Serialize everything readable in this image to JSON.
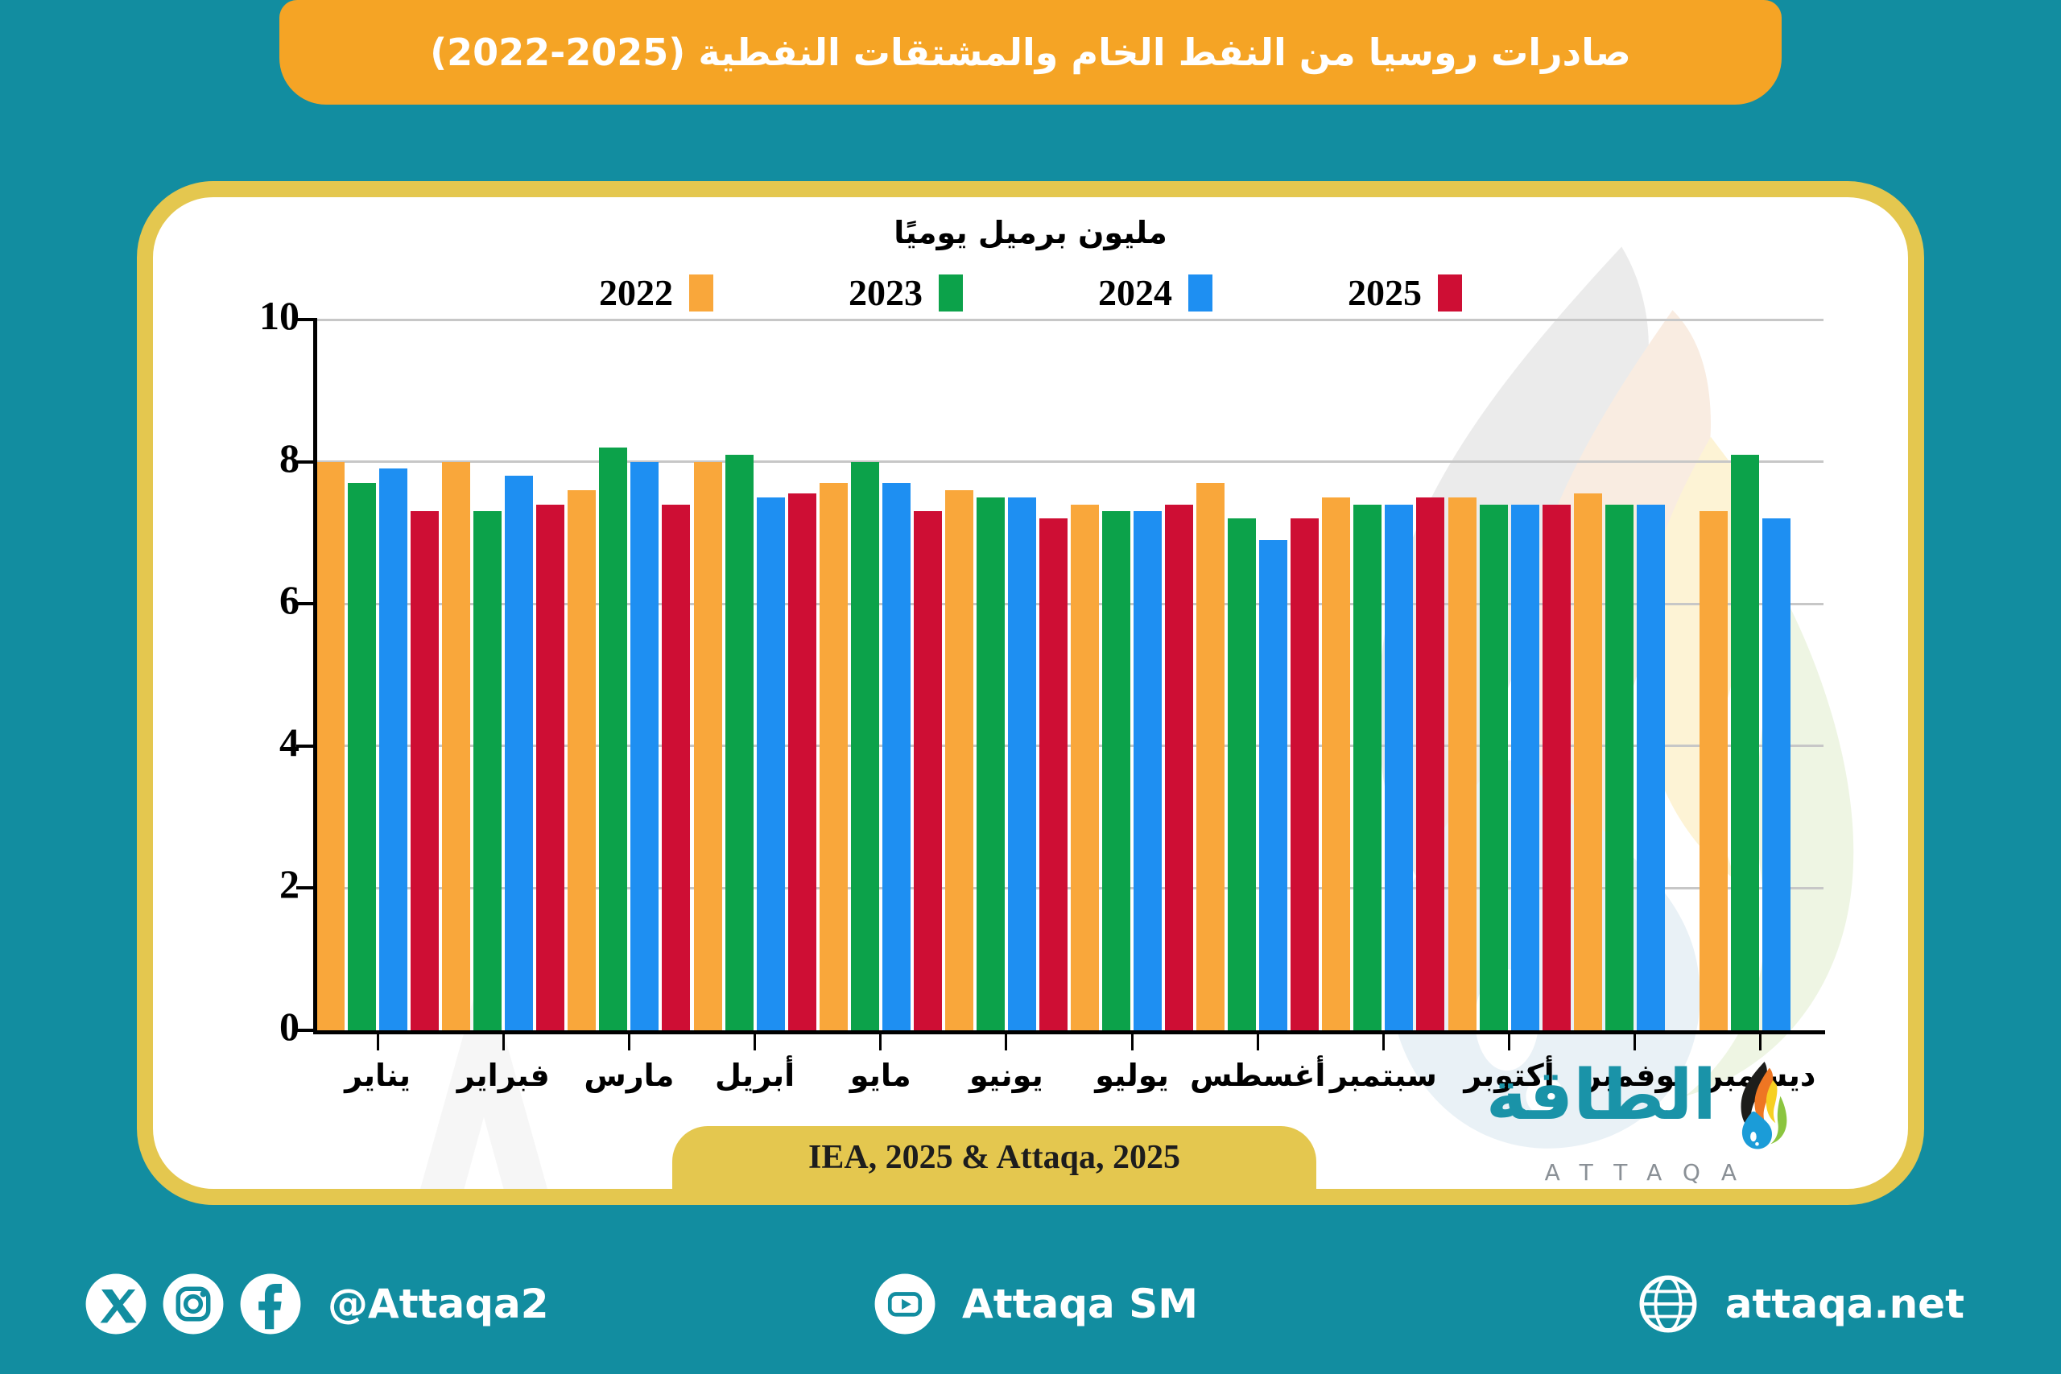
{
  "title": "صادرات روسيا من النفط الخام والمشتقات النفطية (2025-2022)",
  "chart_data": {
    "type": "bar",
    "title": "مليون برميل يوميًا",
    "categories": [
      "يناير",
      "فبراير",
      "مارس",
      "أبريل",
      "مايو",
      "يونيو",
      "يوليو",
      "أغسطس",
      "سبتمبر",
      "أكتوبر",
      "نوفمبر",
      "ديسمبر"
    ],
    "series": [
      {
        "name": "2022",
        "color": "#F9A73B",
        "values": [
          8.0,
          8.0,
          7.6,
          8.0,
          7.7,
          7.6,
          7.4,
          7.7,
          7.5,
          7.5,
          7.55,
          7.3
        ]
      },
      {
        "name": "2023",
        "color": "#0CA24A",
        "values": [
          7.7,
          7.3,
          8.2,
          8.1,
          8.0,
          7.5,
          7.3,
          7.2,
          7.4,
          7.4,
          7.4,
          8.1
        ]
      },
      {
        "name": "2024",
        "color": "#1E8FF2",
        "values": [
          7.9,
          7.8,
          8.0,
          7.5,
          7.7,
          7.5,
          7.3,
          6.9,
          7.4,
          7.4,
          7.4,
          7.2
        ]
      },
      {
        "name": "2025",
        "color": "#CE0E34",
        "values": [
          7.3,
          7.4,
          7.4,
          7.55,
          7.3,
          7.2,
          7.4,
          7.2,
          7.5,
          7.4,
          null,
          null
        ]
      }
    ],
    "ylim": [
      0,
      10
    ],
    "yticks": [
      0,
      2,
      4,
      6,
      8,
      10
    ],
    "grid": true,
    "legend_position": "top",
    "ylabel": "",
    "xlabel": ""
  },
  "source": "IEA, 2025 & Attaqa, 2025",
  "brand": {
    "arabic": "الطاقة",
    "latin": "ATTAQA"
  },
  "footer": {
    "handle": "@Attaqa2",
    "youtube_label": "Attaqa SM",
    "website": "attaqa.net"
  },
  "colors": {
    "background_teal": "#128DA0",
    "card_border_gold": "#E4C74F",
    "banner_orange": "#F5A425",
    "bar_2022": "#F9A73B",
    "bar_2023": "#0CA24A",
    "bar_2024": "#1E8FF2",
    "bar_2025": "#CE0E34"
  }
}
